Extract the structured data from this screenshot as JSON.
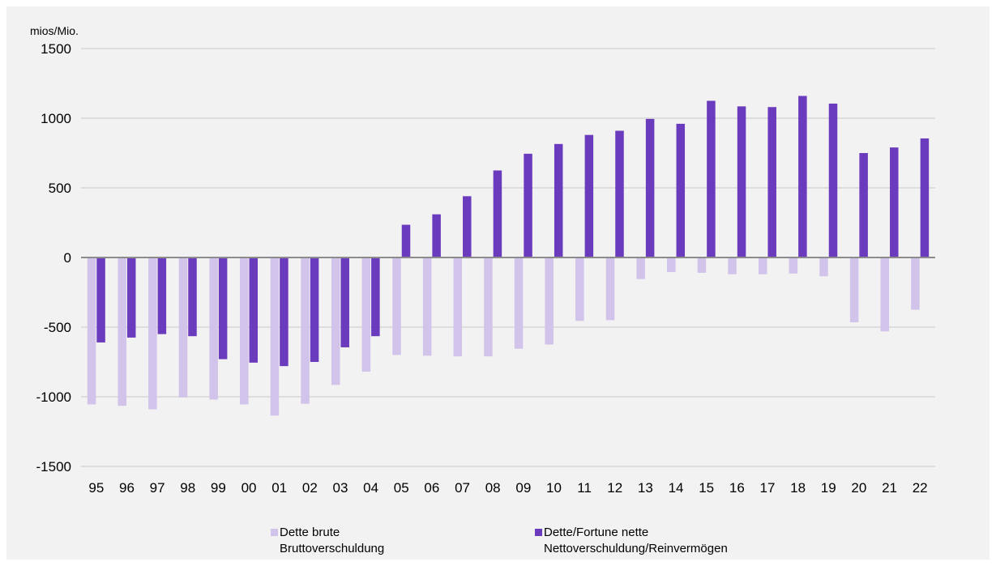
{
  "chart_data": {
    "type": "bar",
    "unit_label": "mios/Mio.",
    "categories": [
      "95",
      "96",
      "97",
      "98",
      "99",
      "00",
      "01",
      "02",
      "03",
      "04",
      "05",
      "06",
      "07",
      "08",
      "09",
      "10",
      "11",
      "12",
      "13",
      "14",
      "15",
      "16",
      "17",
      "18",
      "19",
      "20",
      "21",
      "22"
    ],
    "series": [
      {
        "name": "Dette brute\nBruttoverschuldung",
        "name_lines": [
          "Dette brute",
          "Bruttoverschuldung"
        ],
        "color": "#d1c3ea",
        "values": [
          -1055,
          -1065,
          -1090,
          -1005,
          -1020,
          -1055,
          -1135,
          -1050,
          -915,
          -820,
          -700,
          -705,
          -710,
          -710,
          -655,
          -625,
          -455,
          -450,
          -155,
          -105,
          -110,
          -120,
          -120,
          -115,
          -135,
          -465,
          -530,
          -375
        ]
      },
      {
        "name": "Dette/Fortune nette\nNettoverschuldung/Reinvermögen",
        "name_lines": [
          "Dette/Fortune nette",
          "Nettoverschuldung/Reinvermögen"
        ],
        "color": "#6b3bbd",
        "values": [
          -610,
          -575,
          -550,
          -565,
          -730,
          -755,
          -780,
          -750,
          -645,
          -565,
          235,
          310,
          440,
          625,
          745,
          815,
          880,
          910,
          995,
          960,
          1125,
          1085,
          1080,
          1160,
          1105,
          750,
          790,
          855
        ]
      }
    ],
    "y_ticks": [
      -1500,
      -1000,
      -500,
      0,
      500,
      1000,
      1500
    ],
    "y_tick_labels": [
      "-1500",
      "-1000",
      "-500",
      "0",
      "500",
      "1000",
      "1500"
    ],
    "ylim": [
      -1500,
      1500
    ],
    "grid": true,
    "legend_position": "bottom",
    "colors": {
      "background": "#f2f2f2",
      "grid": "#c8c8c8",
      "zero_line": "#8c8c8c"
    }
  }
}
